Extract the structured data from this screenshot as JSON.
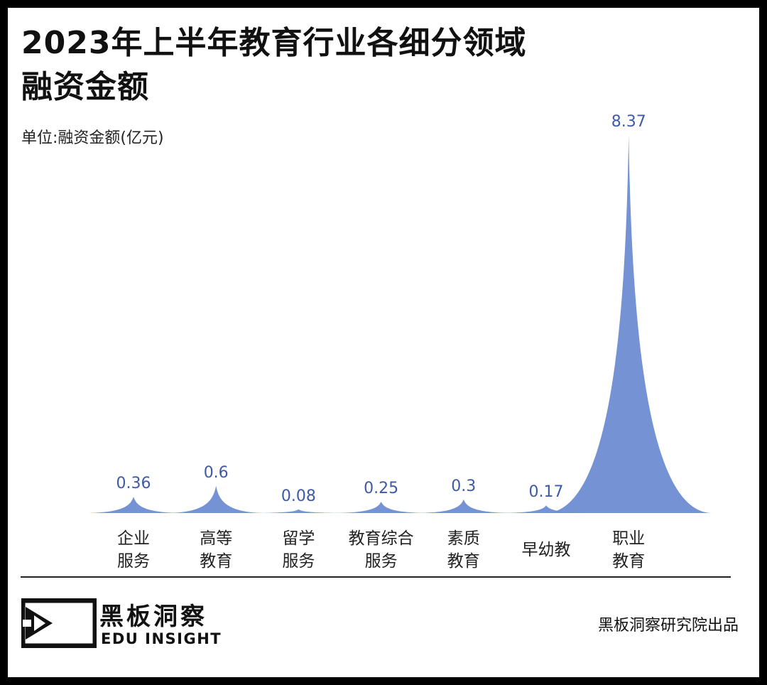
{
  "title_line1": "2023年上半年教育行业各细分领域",
  "title_line2": "融资金额",
  "unit_label": "单位:融资金额(亿元)",
  "colors": {
    "fill": "#6f8ed3",
    "label": "#3f5aa6",
    "axis_text": "#222222"
  },
  "chart_data": {
    "type": "area",
    "title": "2023年上半年教育行业各细分领域融资金额",
    "ylabel": "融资金额(亿元)",
    "xlabel": "",
    "categories": [
      {
        "line1": "企业",
        "line2": "服务"
      },
      {
        "line1": "高等",
        "line2": "教育"
      },
      {
        "line1": "留学",
        "line2": "服务"
      },
      {
        "line1": "教育综合",
        "line2": "服务"
      },
      {
        "line1": "素质",
        "line2": "教育"
      },
      {
        "line1": "早幼教",
        "line2": ""
      },
      {
        "line1": "职业",
        "line2": "教育"
      }
    ],
    "values": [
      0.36,
      0.6,
      0.08,
      0.25,
      0.3,
      0.17,
      8.37
    ],
    "value_labels": [
      "0.36",
      "0.6",
      "0.08",
      "0.25",
      "0.3",
      "0.17",
      "8.37"
    ],
    "ylim": [
      0,
      8.37
    ],
    "grid": false,
    "legend": "none"
  },
  "footer": {
    "brand_cn": "黑板洞察",
    "brand_en": "EDU INSIGHT",
    "credit": "黑板洞察研究院出品"
  }
}
